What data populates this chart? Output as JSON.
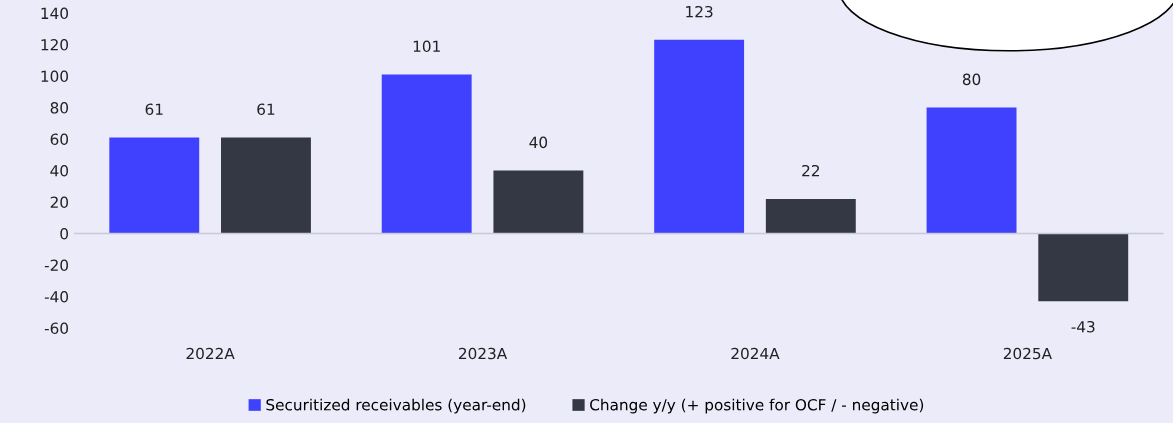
{
  "chart_data": {
    "type": "bar",
    "categories": [
      "2022A",
      "2023A",
      "2024A",
      "2025A"
    ],
    "series": [
      {
        "name": "Securitized receivables (year-end)",
        "color": "#4040ff",
        "values": [
          61,
          101,
          123,
          80
        ]
      },
      {
        "name": "Change y/y (+ positive for OCF / - negative)",
        "color": "#333844",
        "values": [
          61,
          40,
          22,
          -43
        ]
      }
    ],
    "ylim": [
      -60,
      140
    ],
    "yticks": [
      -60,
      -40,
      -20,
      0,
      20,
      40,
      60,
      80,
      100,
      120,
      140
    ],
    "ref_lines": [
      {
        "axis": "y",
        "value": 0,
        "color": "#c8c8d8"
      }
    ],
    "data_labels": true,
    "legend": "bottom"
  }
}
